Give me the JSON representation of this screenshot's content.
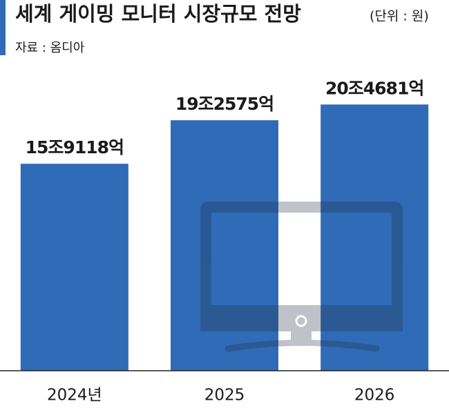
{
  "chart_data": {
    "type": "bar",
    "title": "세계 게이밍 모니터 시장규모 전망",
    "unit": "(단위 : 원)",
    "source": "자료 : 옴디아",
    "categories": [
      "2024년",
      "2025",
      "2026"
    ],
    "values": [
      159118,
      192575,
      204681
    ],
    "value_labels": [
      "15조9118억",
      "19조2575억",
      "20조4681억"
    ],
    "color": "#2f6bb6",
    "ylim": [
      0,
      250000
    ]
  }
}
